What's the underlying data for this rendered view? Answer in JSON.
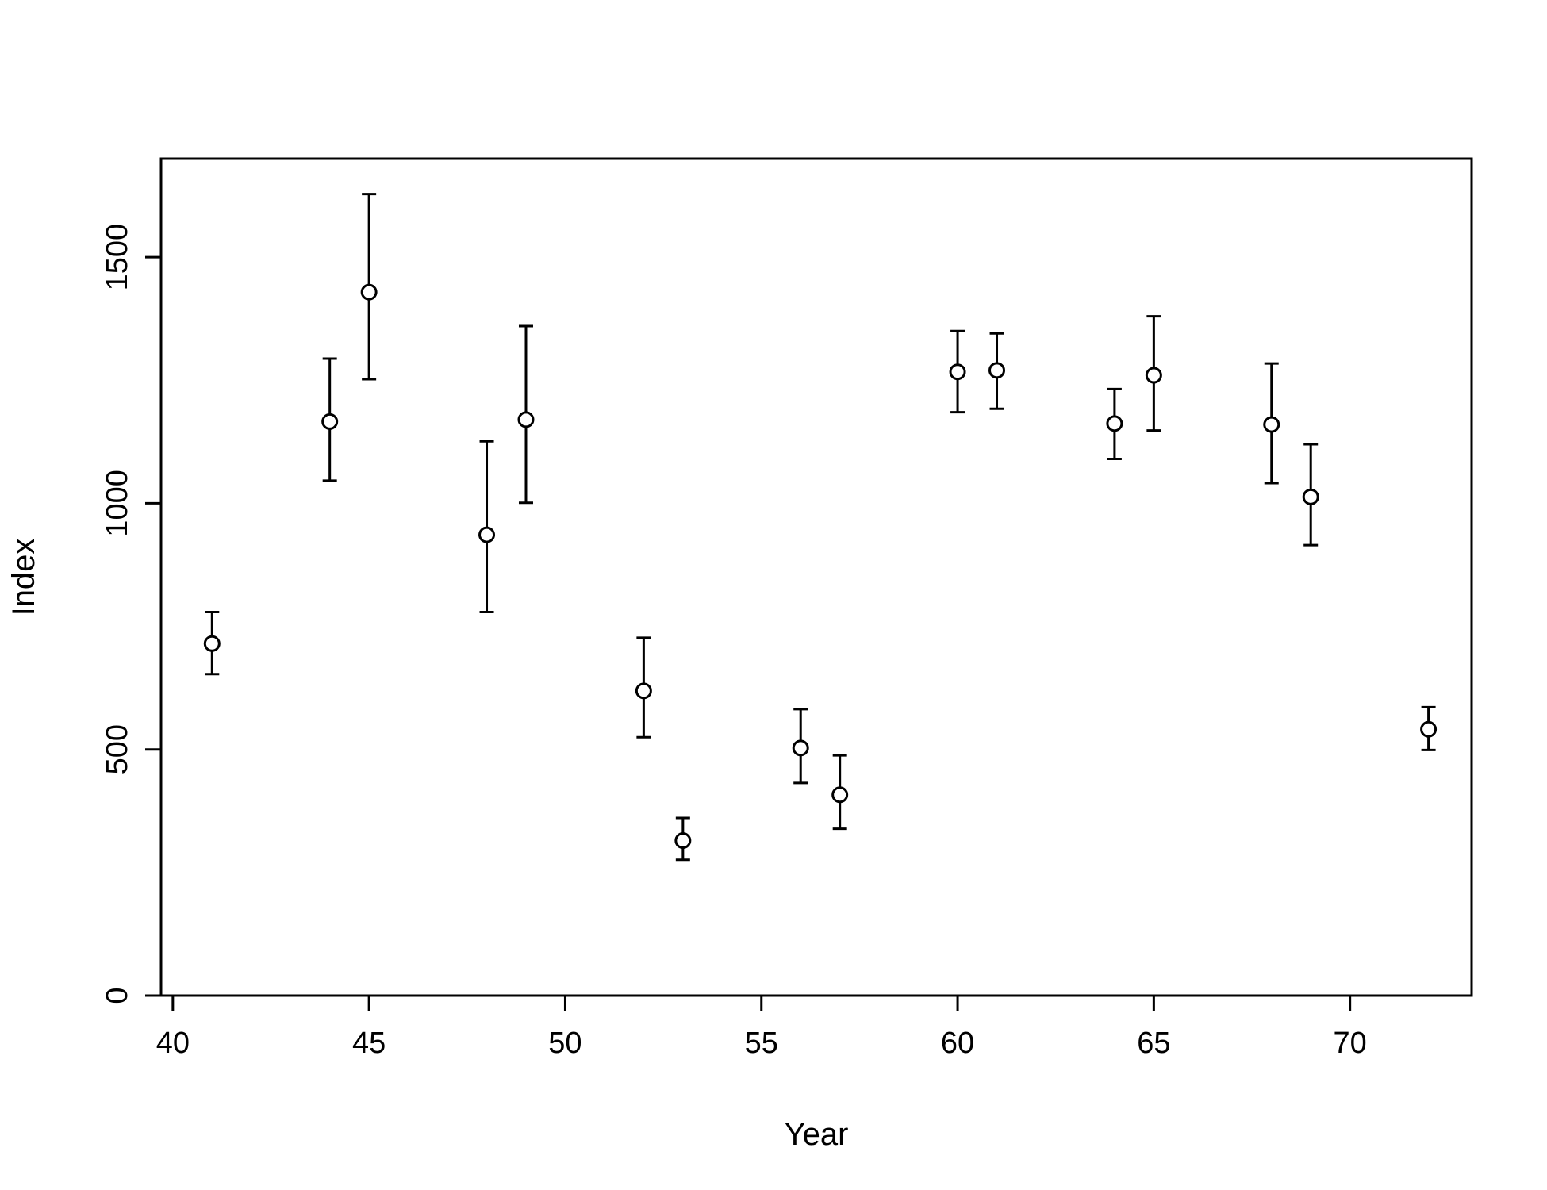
{
  "chart_data": {
    "type": "scatter",
    "title": "",
    "xlabel": "Year",
    "ylabel": "Index",
    "xlim": [
      39.7,
      73.1
    ],
    "ylim": [
      0,
      1700
    ],
    "x_ticks": [
      40,
      45,
      50,
      55,
      60,
      65,
      70
    ],
    "y_ticks": [
      0,
      500,
      1000,
      1500
    ],
    "grid": false,
    "legend": "none",
    "point_style": "open-circle",
    "error_bars": true,
    "points": [
      {
        "x": 41,
        "y": 715,
        "lower": 653,
        "upper": 779
      },
      {
        "x": 44,
        "y": 1166,
        "lower": 1046,
        "upper": 1294
      },
      {
        "x": 45,
        "y": 1429,
        "lower": 1252,
        "upper": 1628
      },
      {
        "x": 48,
        "y": 936,
        "lower": 779,
        "upper": 1126
      },
      {
        "x": 49,
        "y": 1170,
        "lower": 1001,
        "upper": 1360
      },
      {
        "x": 52,
        "y": 619,
        "lower": 525,
        "upper": 727
      },
      {
        "x": 53,
        "y": 315,
        "lower": 276,
        "upper": 361
      },
      {
        "x": 56,
        "y": 503,
        "lower": 432,
        "upper": 582
      },
      {
        "x": 57,
        "y": 408,
        "lower": 339,
        "upper": 488
      },
      {
        "x": 60,
        "y": 1267,
        "lower": 1185,
        "upper": 1350
      },
      {
        "x": 61,
        "y": 1270,
        "lower": 1192,
        "upper": 1345
      },
      {
        "x": 64,
        "y": 1162,
        "lower": 1090,
        "upper": 1232
      },
      {
        "x": 65,
        "y": 1260,
        "lower": 1148,
        "upper": 1380
      },
      {
        "x": 68,
        "y": 1160,
        "lower": 1041,
        "upper": 1284
      },
      {
        "x": 69,
        "y": 1013,
        "lower": 915,
        "upper": 1120
      },
      {
        "x": 72,
        "y": 541,
        "lower": 499,
        "upper": 586
      }
    ]
  }
}
